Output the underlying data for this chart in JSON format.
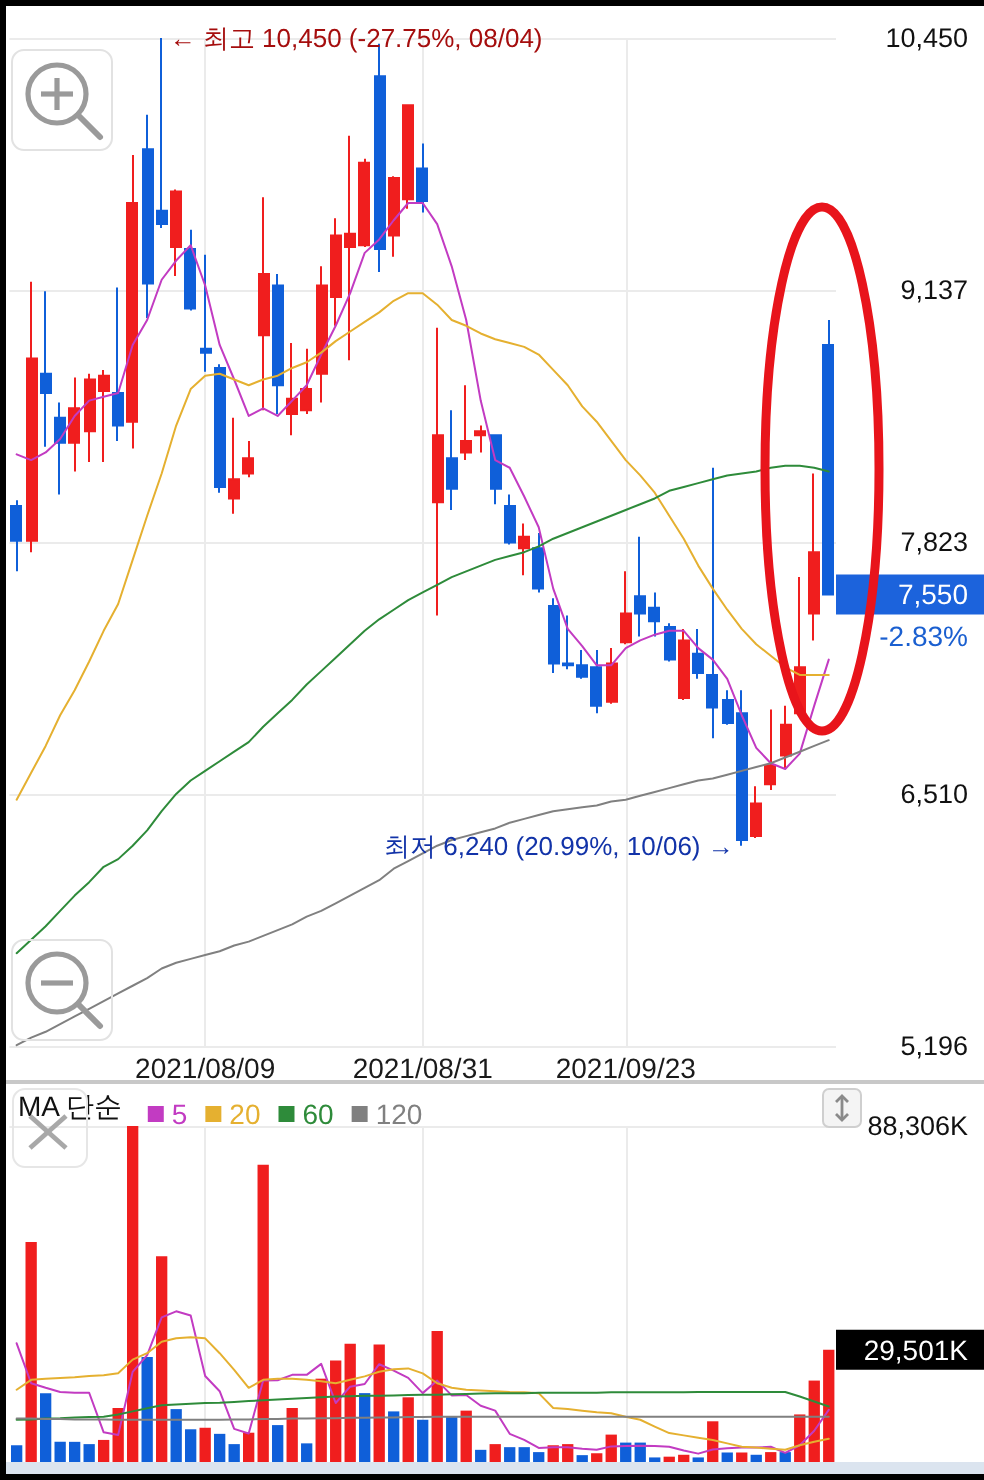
{
  "chart_data": [
    {
      "type": "candlestick",
      "categories": [
        null,
        null,
        null,
        null,
        null,
        null,
        null,
        null,
        null,
        null,
        null,
        null,
        null,
        "2021/08/09",
        null,
        null,
        null,
        null,
        null,
        null,
        null,
        null,
        null,
        null,
        null,
        null,
        null,
        null,
        "2021/08/31",
        null,
        null,
        null,
        null,
        null,
        null,
        null,
        null,
        null,
        null,
        null,
        null,
        null,
        "2021/09/23",
        null,
        null,
        null,
        null,
        null,
        null,
        null,
        null,
        null,
        null,
        null,
        null,
        null,
        null
      ],
      "ohlc": [
        [
          8010,
          8040,
          7670,
          7830
        ],
        [
          7830,
          9180,
          7770,
          8780
        ],
        [
          8700,
          9130,
          8320,
          8600
        ],
        [
          8470,
          8550,
          8070,
          8340
        ],
        [
          8340,
          8680,
          8190,
          8520
        ],
        [
          8400,
          8700,
          8240,
          8670
        ],
        [
          8610,
          8720,
          8240,
          8690
        ],
        [
          8600,
          9150,
          8350,
          8430
        ],
        [
          8450,
          9840,
          8310,
          9590
        ],
        [
          9870,
          10050,
          8990,
          9170
        ],
        [
          9550,
          10450,
          9460,
          9480
        ],
        [
          9360,
          9660,
          9210,
          9650
        ],
        [
          9350,
          9450,
          9030,
          9040
        ],
        [
          8830,
          9320,
          8710,
          8810
        ],
        [
          8730,
          8750,
          8080,
          8110
        ],
        [
          8050,
          8470,
          7970,
          8150
        ],
        [
          8180,
          8350,
          8160,
          8260
        ],
        [
          8900,
          9620,
          8510,
          9220
        ],
        [
          9160,
          9220,
          8490,
          8640
        ],
        [
          8490,
          8860,
          8380,
          8570
        ],
        [
          8510,
          8830,
          8490,
          8620
        ],
        [
          8700,
          9260,
          8550,
          9160
        ],
        [
          9100,
          9510,
          8950,
          9420
        ],
        [
          9360,
          9940,
          8770,
          9430
        ],
        [
          9370,
          9820,
          9360,
          9800
        ],
        [
          10250,
          10420,
          9230,
          9350
        ],
        [
          9420,
          9730,
          9310,
          9720
        ],
        [
          9610,
          10100,
          9560,
          10100
        ],
        [
          9770,
          9900,
          9540,
          9600
        ],
        [
          8030,
          8940,
          7440,
          8380
        ],
        [
          8260,
          8510,
          7990,
          8100
        ],
        [
          8290,
          8640,
          8250,
          8350
        ],
        [
          8380,
          8430,
          8290,
          8400
        ],
        [
          8380,
          8380,
          8020,
          8100
        ],
        [
          8010,
          8070,
          7810,
          7820
        ],
        [
          7790,
          7920,
          7650,
          7850
        ],
        [
          7790,
          7870,
          7560,
          7580
        ],
        [
          7490,
          7530,
          7140,
          7190
        ],
        [
          7190,
          7440,
          7160,
          7180
        ],
        [
          7180,
          7260,
          7110,
          7120
        ],
        [
          7170,
          7260,
          6930,
          6970
        ],
        [
          6990,
          7270,
          6980,
          7190
        ],
        [
          7300,
          7670,
          7290,
          7450
        ],
        [
          7540,
          7850,
          7330,
          7450
        ],
        [
          7480,
          7560,
          7330,
          7410
        ],
        [
          7380,
          7400,
          7200,
          7210
        ],
        [
          7010,
          7370,
          7000,
          7310
        ],
        [
          7240,
          7370,
          7110,
          7140
        ],
        [
          7130,
          8210,
          6800,
          6960
        ],
        [
          7000,
          7050,
          6870,
          6880
        ],
        [
          6930,
          7050,
          6240,
          6270
        ],
        [
          6290,
          6550,
          6280,
          6460
        ],
        [
          6560,
          6950,
          6530,
          6660
        ],
        [
          6710,
          6970,
          6640,
          6870
        ],
        [
          6930,
          7640,
          6930,
          7170
        ],
        [
          7450,
          8180,
          7310,
          7770
        ],
        [
          8850,
          8980,
          7550,
          7550
        ]
      ],
      "colors": [
        "#0f5fd9",
        "#f01e1e",
        "#0f5fd9",
        "#0f5fd9",
        "#f01e1e",
        "#f01e1e",
        "#f01e1e",
        "#0f5fd9",
        "#f01e1e",
        "#0f5fd9",
        "#0f5fd9",
        "#f01e1e",
        "#0f5fd9",
        "#0f5fd9",
        "#0f5fd9",
        "#f01e1e",
        "#f01e1e",
        "#f01e1e",
        "#0f5fd9",
        "#f01e1e",
        "#f01e1e",
        "#f01e1e",
        "#f01e1e",
        "#f01e1e",
        "#f01e1e",
        "#0f5fd9",
        "#f01e1e",
        "#f01e1e",
        "#0f5fd9",
        "#f01e1e",
        "#0f5fd9",
        "#f01e1e",
        "#f01e1e",
        "#0f5fd9",
        "#0f5fd9",
        "#f01e1e",
        "#0f5fd9",
        "#0f5fd9",
        "#0f5fd9",
        "#0f5fd9",
        "#0f5fd9",
        "#f01e1e",
        "#f01e1e",
        "#0f5fd9",
        "#0f5fd9",
        "#0f5fd9",
        "#f01e1e",
        "#0f5fd9",
        "#0f5fd9",
        "#0f5fd9",
        "#0f5fd9",
        "#f01e1e",
        "#f01e1e",
        "#f01e1e",
        "#f01e1e",
        "#f01e1e",
        "#0f5fd9"
      ],
      "series": [
        {
          "type": "line",
          "color": "#c23bc2",
          "values": [
            8280,
            8250,
            8290,
            8360,
            8480,
            8560,
            8580,
            8600,
            8850,
            8980,
            9190,
            9290,
            9370,
            9160,
            8850,
            8670,
            8480,
            8520,
            8480,
            8560,
            8640,
            8800,
            8950,
            9120,
            9330,
            9400,
            9500,
            9590,
            9590,
            9480,
            9260,
            8980,
            8560,
            8250,
            8210,
            8060,
            7900,
            7580,
            7370,
            7280,
            7180,
            7180,
            7270,
            7310,
            7340,
            7360,
            7360,
            7270,
            7210,
            7110,
            6920,
            6750,
            6670,
            6640,
            6720,
            6970,
            7210
          ]
        },
        {
          "type": "line",
          "color": "#e5b030",
          "values": [
            6480,
            6620,
            6760,
            6920,
            7050,
            7200,
            7360,
            7500,
            7730,
            7960,
            8180,
            8430,
            8620,
            8690,
            8700,
            8670,
            8640,
            8670,
            8690,
            8730,
            8760,
            8810,
            8870,
            8920,
            8970,
            9020,
            9080,
            9120,
            9120,
            9060,
            8980,
            8950,
            8910,
            8880,
            8860,
            8840,
            8800,
            8720,
            8640,
            8530,
            8450,
            8350,
            8250,
            8170,
            8080,
            7960,
            7840,
            7700,
            7580,
            7470,
            7370,
            7290,
            7230,
            7170,
            7130,
            7130,
            7130
          ]
        },
        {
          "type": "line",
          "color": "#2e8b3a",
          "values": [
            5680,
            5750,
            5820,
            5900,
            5980,
            6050,
            6130,
            6170,
            6240,
            6320,
            6420,
            6510,
            6580,
            6630,
            6680,
            6730,
            6780,
            6860,
            6930,
            7000,
            7080,
            7150,
            7220,
            7290,
            7360,
            7420,
            7470,
            7520,
            7560,
            7600,
            7640,
            7670,
            7700,
            7730,
            7750,
            7770,
            7800,
            7840,
            7870,
            7900,
            7930,
            7960,
            7990,
            8020,
            8050,
            8090,
            8110,
            8130,
            8150,
            8170,
            8180,
            8190,
            8210,
            8220,
            8220,
            8210,
            8190
          ]
        },
        {
          "type": "line",
          "color": "#808080",
          "values": [
            5200,
            5240,
            5270,
            5310,
            5350,
            5390,
            5430,
            5470,
            5510,
            5550,
            5600,
            5630,
            5650,
            5670,
            5690,
            5720,
            5740,
            5770,
            5800,
            5830,
            5870,
            5900,
            5940,
            5980,
            6020,
            6060,
            6120,
            6160,
            6200,
            6240,
            6270,
            6290,
            6310,
            6330,
            6360,
            6380,
            6400,
            6420,
            6430,
            6440,
            6450,
            6470,
            6480,
            6500,
            6520,
            6540,
            6560,
            6580,
            6590,
            6610,
            6630,
            6650,
            6670,
            6700,
            6730,
            6760,
            6790
          ]
        }
      ],
      "ylim": [
        5196,
        10450
      ],
      "yticks": [
        {
          "value": 10450,
          "label": "10,450"
        },
        {
          "value": 9137,
          "label": "9,137"
        },
        {
          "value": 7823,
          "label": "7,823"
        },
        {
          "value": 6510,
          "label": "6,510"
        },
        {
          "value": 5196,
          "label": "5,196"
        }
      ],
      "grid": true,
      "annotations": [
        "← 최고 10,450 (-27.75%, 08/04)",
        "최저 6,240 (20.99%, 10/06) →",
        "7,550",
        "-2.83%"
      ]
    },
    {
      "type": "bar",
      "categories": [
        null,
        null,
        null,
        null,
        null,
        null,
        null,
        null,
        null,
        null,
        null,
        null,
        null,
        "2021/08/09",
        null,
        null,
        null,
        null,
        null,
        null,
        null,
        null,
        null,
        null,
        null,
        null,
        null,
        null,
        "2021/08/31",
        null,
        null,
        null,
        null,
        null,
        null,
        null,
        null,
        null,
        null,
        null,
        null,
        null,
        "2021/09/23",
        null,
        null,
        null,
        null,
        null,
        null,
        null,
        null,
        null,
        null,
        null,
        null,
        null,
        null
      ],
      "series": [
        {
          "values": [
            4400,
            57800,
            18100,
            5300,
            5300,
            4700,
            5800,
            14200,
            88306,
            27600,
            54100,
            13900,
            8600,
            9000,
            7400,
            4700,
            7700,
            78100,
            9700,
            14200,
            4900,
            21900,
            26700,
            31100,
            18100,
            30900,
            13300,
            17000,
            11100,
            34400,
            11800,
            13500,
            3200,
            4700,
            3900,
            3900,
            2600,
            4400,
            4700,
            1800,
            2300,
            7200,
            5100,
            5100,
            1200,
            1400,
            1900,
            1200,
            10700,
            2500,
            2500,
            1900,
            2600,
            2600,
            12500,
            21400,
            29501
          ],
          "colors": [
            "#0f5fd9",
            "#f01e1e",
            "#0f5fd9",
            "#0f5fd9",
            "#0f5fd9",
            "#0f5fd9",
            "#f01e1e",
            "#f01e1e",
            "#f01e1e",
            "#0f5fd9",
            "#f01e1e",
            "#0f5fd9",
            "#0f5fd9",
            "#f01e1e",
            "#0f5fd9",
            "#0f5fd9",
            "#f01e1e",
            "#f01e1e",
            "#0f5fd9",
            "#f01e1e",
            "#0f5fd9",
            "#f01e1e",
            "#f01e1e",
            "#f01e1e",
            "#0f5fd9",
            "#f01e1e",
            "#0f5fd9",
            "#f01e1e",
            "#0f5fd9",
            "#f01e1e",
            "#0f5fd9",
            "#f01e1e",
            "#0f5fd9",
            "#f01e1e",
            "#0f5fd9",
            "#0f5fd9",
            "#0f5fd9",
            "#f01e1e",
            "#f01e1e",
            "#0f5fd9",
            "#f01e1e",
            "#f01e1e",
            "#0f5fd9",
            "#0f5fd9",
            "#0f5fd9",
            "#f01e1e",
            "#f01e1e",
            "#0f5fd9",
            "#f01e1e",
            "#0f5fd9",
            "#f01e1e",
            "#0f5fd9",
            "#f01e1e",
            "#0f5fd9",
            "#f01e1e",
            "#f01e1e",
            "#f01e1e"
          ]
        },
        {
          "type": "line",
          "name": "5",
          "color": "#c23bc2",
          "values": [
            31200,
            20700,
            19500,
            18400,
            18200,
            18200,
            7800,
            7100,
            23700,
            28100,
            38000,
            39600,
            38500,
            22600,
            18600,
            8700,
            7500,
            21400,
            21500,
            22900,
            22900,
            25800,
            15500,
            19800,
            20500,
            25700,
            24000,
            22100,
            18100,
            21400,
            17500,
            17600,
            14800,
            13500,
            7400,
            5800,
            3700,
            3900,
            3900,
            3500,
            3200,
            4100,
            4200,
            4300,
            4200,
            4000,
            3000,
            2200,
            3300,
            3600,
            3800,
            3800,
            4000,
            2400,
            4400,
            8200,
            13700
          ]
        },
        {
          "type": "line",
          "name": "20",
          "color": "#e5b030",
          "values": [
            19000,
            21600,
            21900,
            22100,
            22300,
            22600,
            22800,
            23300,
            26900,
            28600,
            31600,
            32500,
            32800,
            32500,
            28600,
            24200,
            19500,
            21600,
            21900,
            21900,
            21600,
            21200,
            20700,
            21600,
            22500,
            23700,
            24400,
            24600,
            23300,
            20700,
            19500,
            19000,
            18800,
            18600,
            18400,
            18300,
            18100,
            14200,
            13900,
            13500,
            13100,
            12800,
            11900,
            11100,
            9300,
            7600,
            7000,
            6400,
            5800,
            4900,
            4000,
            3800,
            3500,
            3200,
            4400,
            5300,
            6100
          ]
        },
        {
          "type": "line",
          "name": "60",
          "color": "#2e8b3a",
          "values": [
            11100,
            11200,
            11400,
            11500,
            11700,
            11800,
            11900,
            12500,
            13300,
            14100,
            14900,
            15100,
            15300,
            15500,
            15600,
            15800,
            16000,
            16200,
            16400,
            16600,
            16800,
            17000,
            17200,
            17300,
            17400,
            17400,
            17500,
            17600,
            17700,
            17700,
            17800,
            17900,
            18000,
            18100,
            18100,
            18100,
            18200,
            18200,
            18200,
            18200,
            18200,
            18300,
            18300,
            18300,
            18300,
            18300,
            18300,
            18400,
            18400,
            18400,
            18400,
            18400,
            18400,
            18400,
            17200,
            15900,
            14600
          ]
        },
        {
          "type": "line",
          "name": "120",
          "color": "#808080",
          "values": [
            11400,
            11400,
            11300,
            11300,
            11200,
            11200,
            11200,
            11100,
            11100,
            11100,
            11100,
            11100,
            11100,
            11100,
            11100,
            11200,
            11200,
            11300,
            11300,
            11400,
            11400,
            11500,
            11500,
            11600,
            11600,
            11700,
            11700,
            11800,
            11800,
            11900,
            11900,
            11900,
            11900,
            11900,
            11900,
            11900,
            11900,
            11900,
            11900,
            11900,
            11900,
            11900,
            11900,
            11900,
            11900,
            11900,
            11900,
            11900,
            11900,
            11900,
            11900,
            11900,
            11900,
            11900,
            11900,
            11900,
            11900
          ]
        }
      ],
      "ylim": [
        0,
        88306
      ],
      "yticks": [
        {
          "value": 88306,
          "label": "88,306K"
        }
      ],
      "grid": true,
      "legend": "top left",
      "legend_title": "MA 단순",
      "tick_labels": "y",
      "annotations": [
        "29,501K"
      ]
    }
  ]
}
